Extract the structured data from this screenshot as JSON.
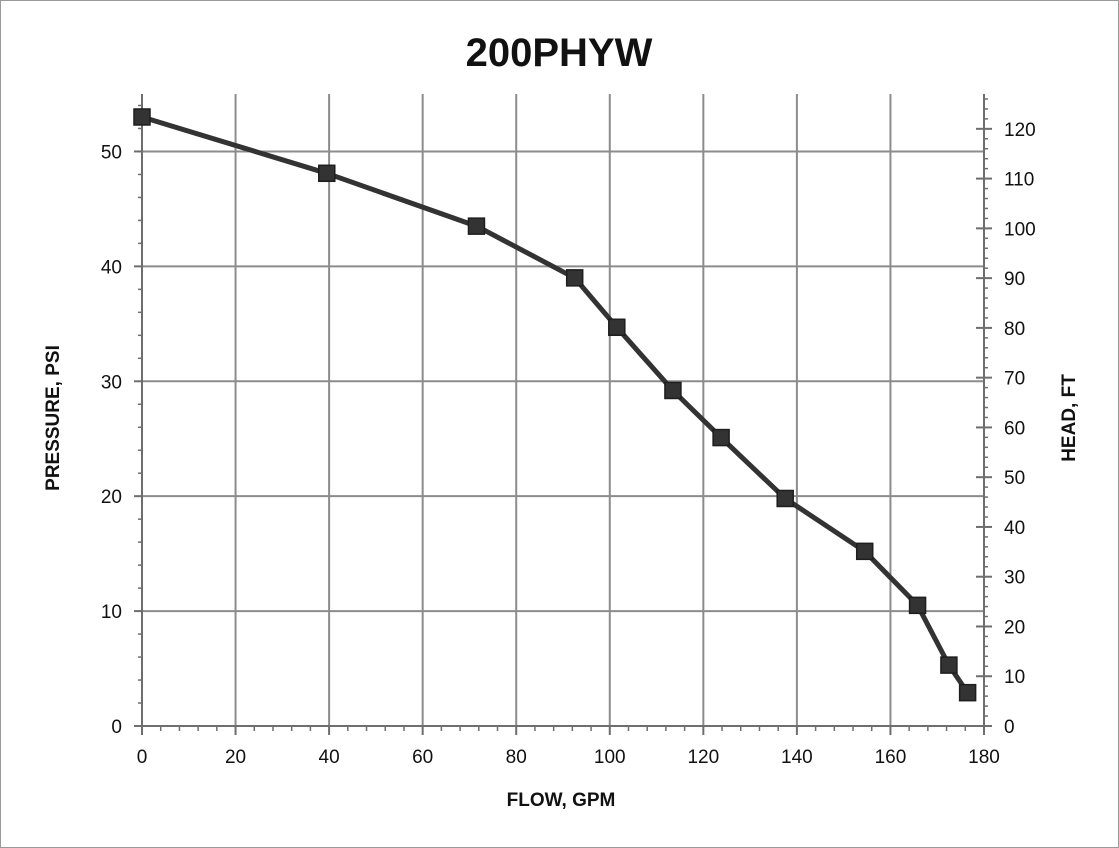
{
  "chart_data": {
    "type": "line",
    "title": "200PHYW",
    "xlabel": "FLOW, GPM",
    "ylabel": "PRESSURE, PSI",
    "y2label": "HEAD, FT",
    "xlim": [
      0,
      180
    ],
    "ylim": [
      0,
      55
    ],
    "y2lim": [
      0,
      127
    ],
    "xticks": [
      0,
      20,
      40,
      60,
      80,
      100,
      120,
      140,
      160,
      180
    ],
    "yticks": [
      0,
      10,
      20,
      30,
      40,
      50
    ],
    "y2ticks": [
      0,
      10,
      20,
      30,
      40,
      50,
      60,
      70,
      80,
      90,
      100,
      110,
      120
    ],
    "grid": true,
    "series": [
      {
        "x": [
          0,
          39.5,
          71.5,
          92.5,
          101.5,
          113.5,
          123.8,
          137.5,
          154.5,
          165.8,
          172.5,
          176.5
        ],
        "values": [
          53.0,
          48.1,
          43.5,
          39.0,
          34.7,
          29.2,
          25.1,
          19.8,
          15.2,
          10.5,
          5.3,
          2.9
        ]
      }
    ],
    "colors": {
      "line": "#333333",
      "marker": "#333333",
      "grid": "#8c8c8c",
      "axis": "#6e6e6e"
    }
  }
}
